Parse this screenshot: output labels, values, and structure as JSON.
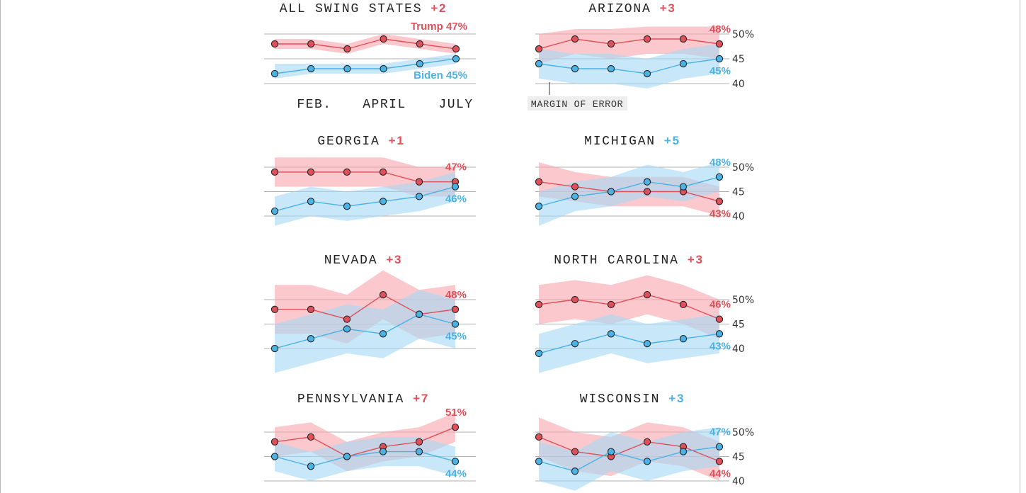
{
  "colors": {
    "trump": "#e0505a",
    "trump_band": "#f8a8ae",
    "biden": "#4ab2e4",
    "biden_band": "#a6d8f4",
    "grid": "#b0b0b0",
    "text": "#222222"
  },
  "chart_data": {
    "type": "line",
    "y_unit": "%",
    "ylim": [
      40,
      50
    ],
    "y_ticks": [
      "50%",
      "45",
      "40"
    ],
    "x_labels": [
      "FEB.",
      "APRIL",
      "JULY"
    ],
    "annotation": "MARGIN OF ERROR",
    "panels": [
      {
        "title": "ALL SWING STATES",
        "lead": "+2",
        "leader": "trump",
        "trump": [
          48,
          48,
          47,
          49,
          48,
          47
        ],
        "biden": [
          42,
          43,
          43,
          43,
          44,
          45
        ],
        "trump_label": "Trump 47%",
        "biden_label": "Biden 45%",
        "trump_band": [
          [
            47,
            49
          ],
          [
            47,
            49
          ],
          [
            46,
            48
          ],
          [
            48,
            50
          ],
          [
            47,
            49
          ],
          [
            46,
            48
          ]
        ],
        "biden_band": [
          [
            41,
            44
          ],
          [
            42,
            44
          ],
          [
            42,
            44
          ],
          [
            42,
            44
          ],
          [
            43,
            45
          ],
          [
            44,
            46
          ]
        ]
      },
      {
        "title": "ARIZONA",
        "lead": "+3",
        "leader": "trump",
        "trump": [
          47,
          49,
          48,
          49,
          49,
          48
        ],
        "biden": [
          44,
          43,
          43,
          42,
          44,
          45
        ],
        "trump_label": "48%",
        "biden_label": "45%",
        "trump_band": [
          [
            44,
            50
          ],
          [
            46,
            51
          ],
          [
            45,
            51
          ],
          [
            46,
            51.5
          ],
          [
            46,
            51.5
          ],
          [
            45,
            51.5
          ]
        ],
        "biden_band": [
          [
            41,
            47
          ],
          [
            40,
            46
          ],
          [
            40,
            46
          ],
          [
            39,
            45
          ],
          [
            41,
            47
          ],
          [
            42,
            48
          ]
        ]
      },
      {
        "title": "GEORGIA",
        "lead": "+1",
        "leader": "trump",
        "trump": [
          49,
          49,
          49,
          49,
          47,
          47
        ],
        "biden": [
          41,
          43,
          42,
          43,
          44,
          46
        ],
        "trump_label": "47%",
        "biden_label": "46%",
        "trump_band": [
          [
            46,
            52
          ],
          [
            46,
            52
          ],
          [
            46,
            52
          ],
          [
            46,
            52
          ],
          [
            44,
            50
          ],
          [
            44,
            50
          ]
        ],
        "biden_band": [
          [
            38,
            44
          ],
          [
            40,
            46
          ],
          [
            39,
            45
          ],
          [
            40,
            46
          ],
          [
            41,
            47
          ],
          [
            43,
            49
          ]
        ]
      },
      {
        "title": "MICHIGAN",
        "lead": "+5",
        "leader": "biden",
        "trump": [
          47,
          46,
          45,
          45,
          45,
          43
        ],
        "biden": [
          42,
          44,
          45,
          47,
          46,
          48
        ],
        "trump_label": "43%",
        "biden_label": "48%",
        "trump_band": [
          [
            44,
            51
          ],
          [
            43,
            49
          ],
          [
            42,
            48
          ],
          [
            42,
            48
          ],
          [
            42,
            48
          ],
          [
            40,
            46
          ]
        ],
        "biden_band": [
          [
            38,
            45
          ],
          [
            41,
            47
          ],
          [
            42,
            48
          ],
          [
            44,
            50.5
          ],
          [
            43,
            49
          ],
          [
            45,
            51
          ]
        ]
      },
      {
        "title": "NEVADA",
        "lead": "+3",
        "leader": "trump",
        "trump": [
          48,
          48,
          46,
          51,
          47,
          48
        ],
        "biden": [
          40,
          42,
          44,
          43,
          47,
          45
        ],
        "trump_label": "48%",
        "biden_label": "45%",
        "trump_band": [
          [
            43,
            53
          ],
          [
            43,
            53
          ],
          [
            41,
            51
          ],
          [
            46,
            56
          ],
          [
            42,
            52
          ],
          [
            43,
            53
          ]
        ],
        "biden_band": [
          [
            35,
            45
          ],
          [
            37,
            47
          ],
          [
            39,
            49
          ],
          [
            38,
            48
          ],
          [
            42,
            52
          ],
          [
            40,
            50
          ]
        ]
      },
      {
        "title": "NORTH CAROLINA",
        "lead": "+3",
        "leader": "trump",
        "trump": [
          49,
          50,
          49,
          51,
          49,
          46
        ],
        "biden": [
          39,
          41,
          43,
          41,
          42,
          43
        ],
        "trump_label": "46%",
        "biden_label": "43%",
        "trump_band": [
          [
            45,
            53
          ],
          [
            46,
            54
          ],
          [
            45,
            53
          ],
          [
            47,
            55
          ],
          [
            45,
            53
          ],
          [
            42,
            50
          ]
        ],
        "biden_band": [
          [
            35,
            43
          ],
          [
            37,
            45
          ],
          [
            39,
            47
          ],
          [
            37,
            45
          ],
          [
            38,
            46
          ],
          [
            39,
            47
          ]
        ]
      },
      {
        "title": "PENNSYLVANIA",
        "lead": "+7",
        "leader": "trump",
        "trump": [
          48,
          49,
          45,
          47,
          48,
          51
        ],
        "biden": [
          45,
          43,
          45,
          46,
          46,
          44
        ],
        "trump_label": "51%",
        "biden_label": "44%",
        "trump_band": [
          [
            45,
            51
          ],
          [
            46,
            52
          ],
          [
            42,
            48
          ],
          [
            44,
            50
          ],
          [
            45,
            51
          ],
          [
            48,
            54
          ]
        ],
        "biden_band": [
          [
            42,
            48
          ],
          [
            40,
            46
          ],
          [
            42,
            48
          ],
          [
            43,
            49
          ],
          [
            43,
            49
          ],
          [
            41,
            47
          ]
        ]
      },
      {
        "title": "WISCONSIN",
        "lead": "+3",
        "leader": "biden",
        "trump": [
          49,
          46,
          45,
          48,
          47,
          44
        ],
        "biden": [
          44,
          42,
          46,
          44,
          46,
          47
        ],
        "trump_label": "44%",
        "biden_label": "47%",
        "trump_band": [
          [
            45,
            53
          ],
          [
            42,
            50
          ],
          [
            41,
            49
          ],
          [
            44,
            52
          ],
          [
            43,
            51
          ],
          [
            40,
            48
          ]
        ],
        "biden_band": [
          [
            40,
            48
          ],
          [
            38,
            46
          ],
          [
            42,
            50
          ],
          [
            40,
            48
          ],
          [
            42,
            50
          ],
          [
            43,
            51
          ]
        ]
      }
    ]
  }
}
